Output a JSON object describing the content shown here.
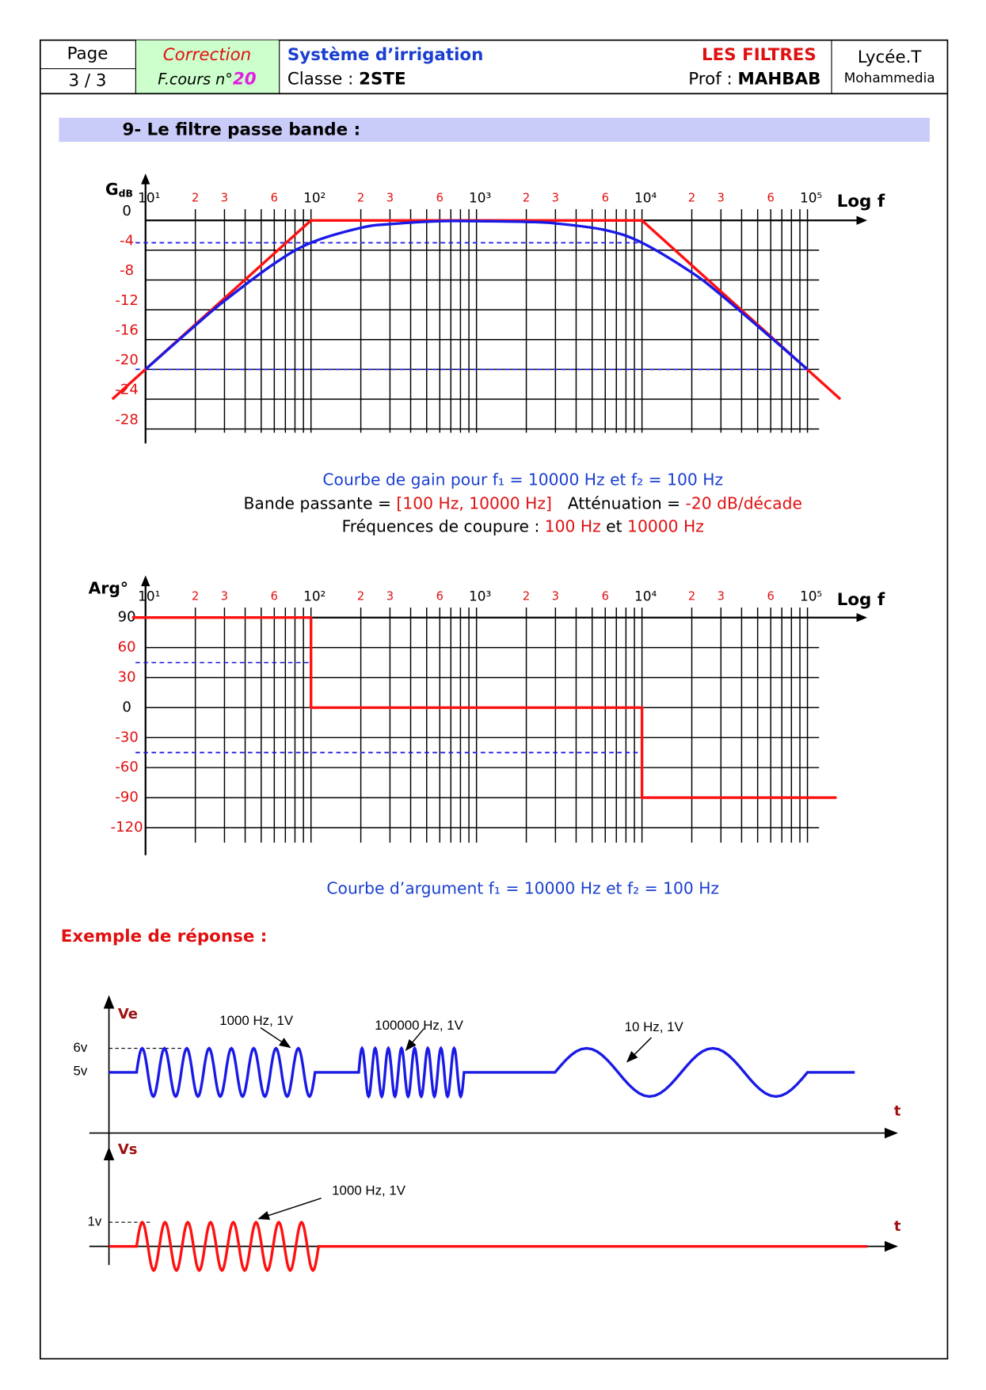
{
  "header": {
    "page_label": "Page",
    "page_number": "3 / 3",
    "correction": "Correction",
    "course_prefix": "F.cours n°",
    "course_number": "20",
    "subject": "Système d’irrigation",
    "class_label": "Classe :",
    "class_value": "2STE",
    "topic": "LES FILTRES",
    "prof_label": "Prof :",
    "prof_value": "MAHBAB",
    "school": "Lycée.T",
    "city": "Mohammedia"
  },
  "section_title": "9- Le filtre passe bande :",
  "gain_chart": {
    "type": "line",
    "y_label": "G",
    "y_label_sub": "dB",
    "x_label": "Log f",
    "log_x": true,
    "grid": true,
    "xlim": [
      10,
      100000
    ],
    "ylim": [
      -28.5,
      1.5
    ],
    "xticks": [
      {
        "value": 10,
        "label": "10¹"
      },
      {
        "value": 20,
        "label": "2"
      },
      {
        "value": 30,
        "label": "3"
      },
      {
        "value": 60,
        "label": "6"
      },
      {
        "value": 100,
        "label": "10²"
      },
      {
        "value": 200,
        "label": "2"
      },
      {
        "value": 300,
        "label": "3"
      },
      {
        "value": 600,
        "label": "6"
      },
      {
        "value": 1000,
        "label": "10³"
      },
      {
        "value": 2000,
        "label": "2"
      },
      {
        "value": 3000,
        "label": "3"
      },
      {
        "value": 6000,
        "label": "6"
      },
      {
        "value": 10000,
        "label": "10⁴"
      },
      {
        "value": 20000,
        "label": "2"
      },
      {
        "value": 30000,
        "label": "3"
      },
      {
        "value": 60000,
        "label": "6"
      },
      {
        "value": 100000,
        "label": "10⁵"
      }
    ],
    "minor_grid": [
      40,
      50,
      70,
      80,
      90,
      400,
      500,
      700,
      800,
      900,
      4000,
      5000,
      7000,
      8000,
      9000,
      40000,
      50000,
      70000,
      80000,
      90000
    ],
    "yticks": [
      0,
      -4,
      -8,
      -12,
      -16,
      -20,
      -24,
      -28
    ],
    "series": [
      {
        "color": "#ff1010",
        "x": [
          6.3,
          100,
          10000,
          158000
        ],
        "values": [
          -24,
          0,
          0,
          -24
        ]
      },
      {
        "color": "#1a1ae6",
        "smooth": true,
        "x": [
          10,
          20,
          30,
          60,
          100,
          200,
          300,
          600,
          1000,
          2000,
          3000,
          6000,
          10000,
          20000,
          30000,
          60000,
          100000
        ],
        "values": [
          -20,
          -14.1,
          -10.8,
          -5.8,
          -3,
          -1,
          -0.5,
          -0.1,
          -0.1,
          -0.2,
          -0.4,
          -1.3,
          -3,
          -7,
          -10,
          -15.7,
          -20
        ]
      }
    ],
    "dashed_lines": [
      {
        "color": "#1a1ae6",
        "y": -3,
        "x": [
          8.7,
          10000
        ]
      },
      {
        "color": "#1a1ae6",
        "y": -20,
        "x": [
          8.7,
          100000
        ]
      }
    ]
  },
  "gain_caption": "Courbe de gain pour f₁ = 10000 Hz et f₂ = 100 Hz",
  "passband": {
    "label": "Bande passante =",
    "value": "[100 Hz, 10000 Hz]",
    "atten_label": "Atténuation =",
    "atten_value": "-20 dB/décade"
  },
  "cutoff": {
    "label": "Fréquences de coupure :",
    "f2": "100 Hz",
    "joiner": "et",
    "f1": "10000 Hz"
  },
  "phase_chart": {
    "type": "line",
    "y_label": "Arg°",
    "x_label": "Log f",
    "log_x": true,
    "grid": true,
    "xlim": [
      10,
      100000
    ],
    "ylim": [
      -135,
      100
    ],
    "xticks": [
      {
        "value": 10,
        "label": "10¹"
      },
      {
        "value": 20,
        "label": "2"
      },
      {
        "value": 30,
        "label": "3"
      },
      {
        "value": 60,
        "label": "6"
      },
      {
        "value": 100,
        "label": "10²"
      },
      {
        "value": 200,
        "label": "2"
      },
      {
        "value": 300,
        "label": "3"
      },
      {
        "value": 600,
        "label": "6"
      },
      {
        "value": 1000,
        "label": "10³"
      },
      {
        "value": 2000,
        "label": "2"
      },
      {
        "value": 3000,
        "label": "3"
      },
      {
        "value": 6000,
        "label": "6"
      },
      {
        "value": 10000,
        "label": "10⁴"
      },
      {
        "value": 20000,
        "label": "2"
      },
      {
        "value": 30000,
        "label": "3"
      },
      {
        "value": 60000,
        "label": "6"
      },
      {
        "value": 100000,
        "label": "10⁵"
      }
    ],
    "minor_grid": [
      40,
      50,
      70,
      80,
      90,
      400,
      500,
      700,
      800,
      900,
      4000,
      5000,
      7000,
      8000,
      9000,
      40000,
      50000,
      70000,
      80000,
      90000
    ],
    "yticks": [
      90,
      60,
      30,
      0,
      -30,
      -60,
      -90,
      -120
    ],
    "series": [
      {
        "color": "#ff1010",
        "x": [
          8.3,
          100,
          100,
          10000,
          10000,
          150000
        ],
        "values": [
          90,
          90,
          0,
          0,
          -90,
          -90
        ]
      }
    ],
    "dashed_lines": [
      {
        "color": "#1a1ae6",
        "y": 45,
        "x": [
          8.7,
          100
        ]
      },
      {
        "color": "#1a1ae6",
        "y": -45,
        "x": [
          8.7,
          10000
        ]
      }
    ]
  },
  "phase_caption": "Courbe d’argument f₁ = 10000 Hz et f₂ = 100 Hz",
  "example": {
    "title": "Exemple de réponse :",
    "ve_label": "Ve",
    "vs_label": "Vs",
    "ve_levels": [
      "6v",
      "5v"
    ],
    "vs_level": "1v",
    "t_labels": [
      "t",
      "t"
    ],
    "signals": [
      "1000 Hz, 1V",
      "100000 Hz, 1V",
      "10 Hz, 1V"
    ],
    "output_signal": "1000 Hz, 1V"
  }
}
